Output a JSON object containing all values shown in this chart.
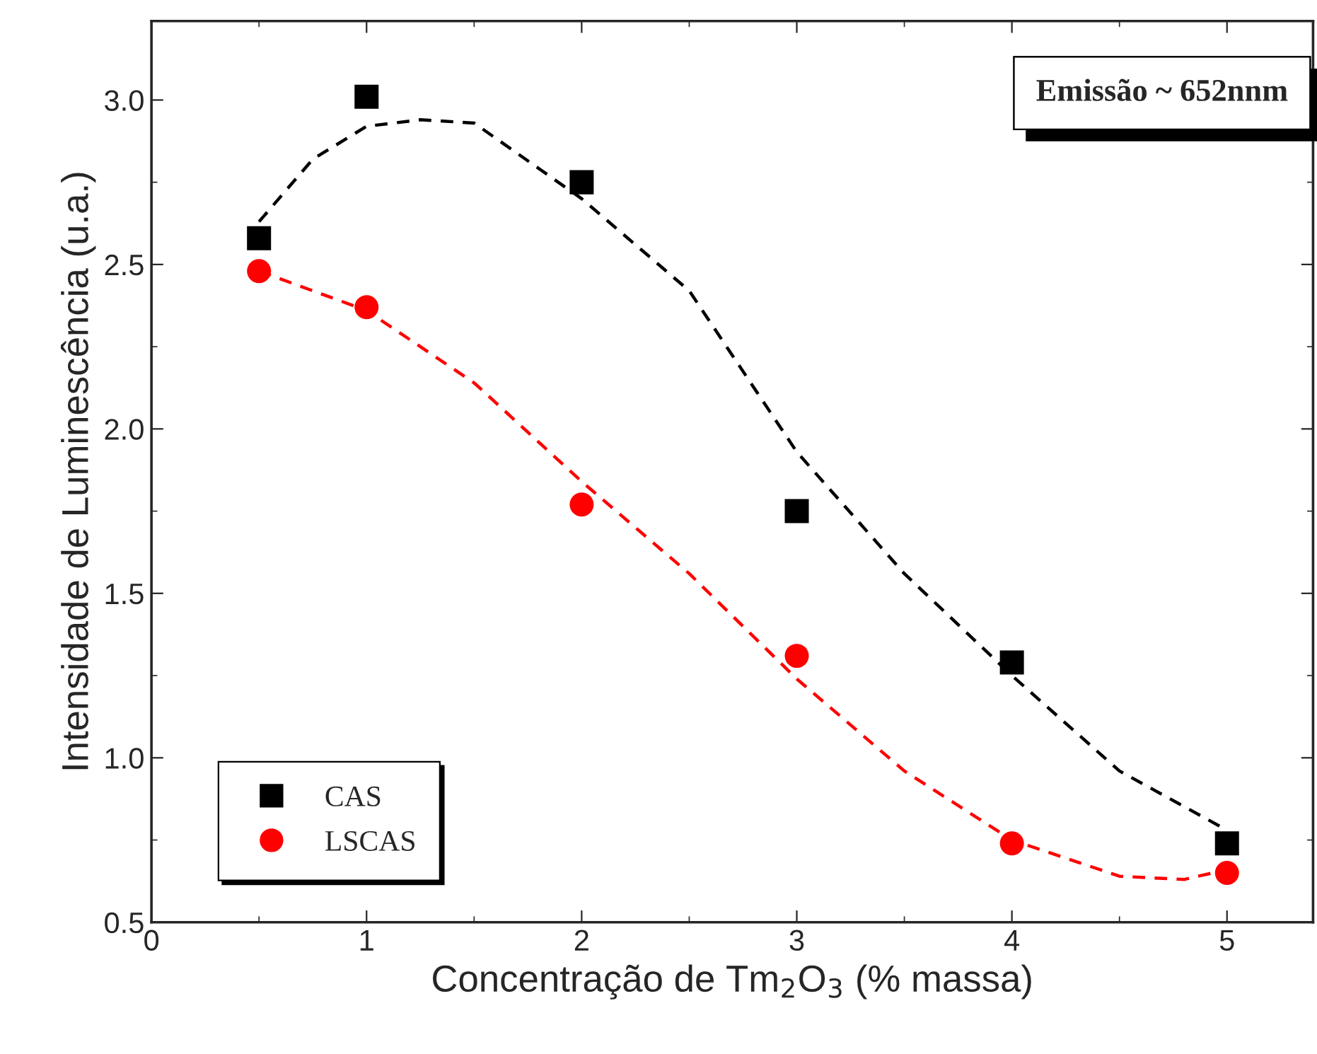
{
  "chart_data": {
    "type": "scatter",
    "xlabel": "Concentração de Tm$_{2}$O$_{3}$ (% massa)",
    "ylabel": "Intensidade de Luminescência (u.a.)",
    "annotations": [
      "Emissão ~ 652nnm"
    ],
    "x": [
      0.5,
      1,
      2,
      3,
      4,
      5
    ],
    "series": [
      {
        "name": "CAS",
        "color": "#000000",
        "marker": "square",
        "values": [
          2.58,
          3.01,
          2.75,
          1.75,
          1.29,
          0.74
        ]
      },
      {
        "name": "LSCAS",
        "color": "#ff0000",
        "marker": "circle",
        "values": [
          2.48,
          2.37,
          1.77,
          1.31,
          0.74,
          0.65
        ]
      },
      {
        "type": "line",
        "color": "#000000",
        "line_style": "dashed",
        "x": [
          0.5,
          0.75,
          1,
          1.25,
          1.5,
          2,
          2.5,
          3,
          3.5,
          4,
          4.5,
          5
        ],
        "values": [
          2.63,
          2.82,
          2.92,
          2.94,
          2.93,
          2.7,
          2.42,
          1.93,
          1.56,
          1.25,
          0.96,
          0.78
        ]
      },
      {
        "type": "line",
        "color": "#ff0000",
        "line_style": "dashed",
        "x": [
          0.5,
          1,
          1.5,
          2,
          2.5,
          3,
          3.5,
          4,
          4.5,
          4.8,
          5
        ],
        "values": [
          2.48,
          2.36,
          2.14,
          1.84,
          1.56,
          1.24,
          0.96,
          0.75,
          0.64,
          0.63,
          0.66
        ]
      }
    ],
    "xlim": [
      0,
      5.4
    ],
    "ylim": [
      0.5,
      3.24
    ],
    "xticks": [
      0,
      1,
      2,
      3,
      4,
      5
    ],
    "yticks": [
      {
        "value": 0.5,
        "label": "0.5"
      },
      {
        "value": 1.0,
        "label": "1.0"
      },
      {
        "value": 1.5,
        "label": "1.5"
      },
      {
        "value": 2.0,
        "label": "2.0"
      },
      {
        "value": 2.5,
        "label": "2.5"
      },
      {
        "value": 3.0,
        "label": "3.0"
      }
    ],
    "legend": "bottom left",
    "grid": false
  }
}
